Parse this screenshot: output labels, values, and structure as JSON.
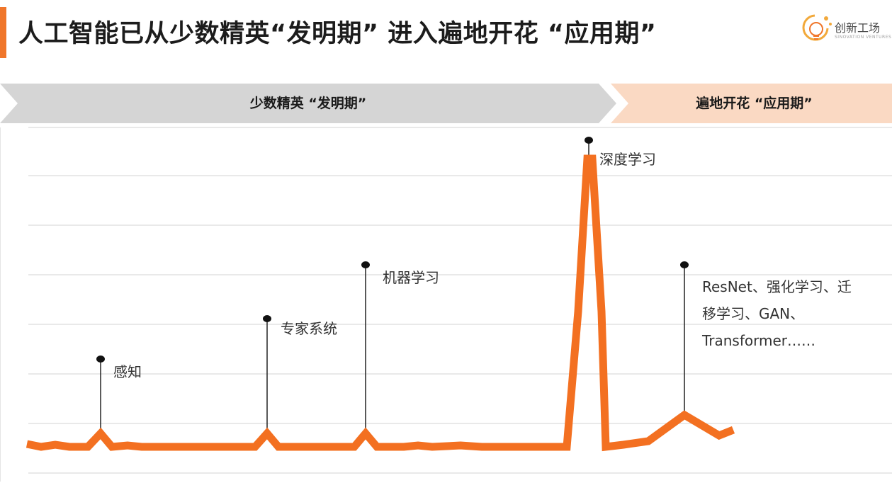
{
  "header": {
    "title": "人工智能已从少数精英“发明期”  进入遍地开花  “应用期”",
    "logo_text": "创新工场",
    "logo_sub": "SINOVATION VENTURES",
    "accent_color": "#f0762a"
  },
  "phases": {
    "left": "少数精英  “发明期”",
    "right": "遍地开花  “应用期”",
    "left_color": "#d5d5d5",
    "right_color": "#fad9c3"
  },
  "annotations": {
    "perception": "感知",
    "expert_systems": "专家系统",
    "machine_learning": "机器学习",
    "deep_learning": "深度学习",
    "recent_line1": "ResNet、强化学习、迁",
    "recent_line2": "移学习、GAN、",
    "recent_line3": "Transformer……"
  },
  "line_color": "#f37021"
}
